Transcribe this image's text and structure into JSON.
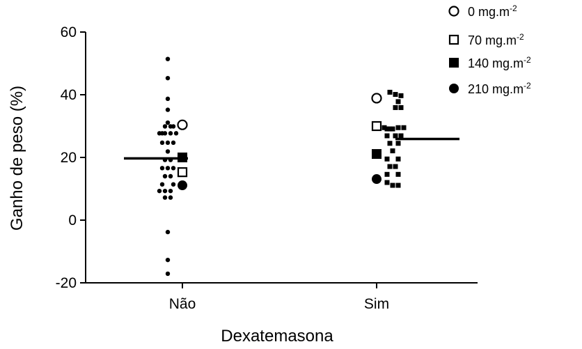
{
  "chart_data": {
    "type": "scatter",
    "title": "",
    "xlabel": "Dexatemasona",
    "ylabel": "Ganho de peso (%)",
    "ylim": [
      -20,
      60
    ],
    "yticks": [
      "-20",
      "0",
      "20",
      "40",
      "60"
    ],
    "categories": [
      "Não",
      "Sim"
    ],
    "grid": false,
    "legend_position": "top-right",
    "legend": [
      {
        "marker": "open-circle",
        "label": "0 mg.m",
        "sup": "-2"
      },
      {
        "marker": "open-square",
        "label": "70 mg.m",
        "sup": "-2"
      },
      {
        "marker": "filled-square",
        "label": "140 mg.m",
        "sup": "-2"
      },
      {
        "marker": "filled-circle",
        "label": "210 mg.m",
        "sup": "-2"
      }
    ],
    "series": [
      {
        "category": "Não",
        "marker": "small-dot",
        "points": [
          {
            "x": -0.105,
            "y": 51.4
          },
          {
            "x": -0.105,
            "y": 45.3
          },
          {
            "x": -0.105,
            "y": 38.7
          },
          {
            "x": -0.105,
            "y": 35.2
          },
          {
            "x": -0.105,
            "y": 31.1
          },
          {
            "x": -0.125,
            "y": 29.9
          },
          {
            "x": -0.085,
            "y": 29.9
          },
          {
            "x": -0.165,
            "y": 27.7
          },
          {
            "x": -0.145,
            "y": 27.7
          },
          {
            "x": -0.125,
            "y": 27.7
          },
          {
            "x": -0.085,
            "y": 27.7
          },
          {
            "x": -0.065,
            "y": 29.9
          },
          {
            "x": -0.045,
            "y": 27.7
          },
          {
            "x": -0.145,
            "y": 24.7
          },
          {
            "x": -0.105,
            "y": 24.7
          },
          {
            "x": -0.065,
            "y": 24.7
          },
          {
            "x": -0.105,
            "y": 21.9
          },
          {
            "x": -0.125,
            "y": 19.2
          },
          {
            "x": -0.085,
            "y": 19.2
          },
          {
            "x": -0.145,
            "y": 16.6
          },
          {
            "x": -0.105,
            "y": 16.6
          },
          {
            "x": -0.065,
            "y": 16.6
          },
          {
            "x": -0.125,
            "y": 14.0
          },
          {
            "x": -0.085,
            "y": 14.0
          },
          {
            "x": -0.145,
            "y": 11.4
          },
          {
            "x": -0.065,
            "y": 11.4
          },
          {
            "x": -0.165,
            "y": 9.3
          },
          {
            "x": -0.125,
            "y": 9.3
          },
          {
            "x": -0.085,
            "y": 9.3
          },
          {
            "x": -0.125,
            "y": 7.2
          },
          {
            "x": -0.085,
            "y": 7.2
          },
          {
            "x": -0.105,
            "y": -3.8
          },
          {
            "x": -0.105,
            "y": -12.7
          },
          {
            "x": -0.105,
            "y": -17.1
          }
        ]
      },
      {
        "category": "Sim",
        "marker": "small-square",
        "points": [
          {
            "x": 0.095,
            "y": 40.8
          },
          {
            "x": 0.135,
            "y": 40.1
          },
          {
            "x": 0.175,
            "y": 39.7
          },
          {
            "x": 0.155,
            "y": 37.8
          },
          {
            "x": 0.135,
            "y": 35.9
          },
          {
            "x": 0.175,
            "y": 35.9
          },
          {
            "x": 0.055,
            "y": 29.5
          },
          {
            "x": 0.075,
            "y": 29.1
          },
          {
            "x": 0.095,
            "y": 29.1
          },
          {
            "x": 0.115,
            "y": 29.1
          },
          {
            "x": 0.155,
            "y": 29.5
          },
          {
            "x": 0.195,
            "y": 29.5
          },
          {
            "x": 0.075,
            "y": 26.9
          },
          {
            "x": 0.135,
            "y": 26.9
          },
          {
            "x": 0.175,
            "y": 26.9
          },
          {
            "x": 0.095,
            "y": 24.5
          },
          {
            "x": 0.155,
            "y": 24.5
          },
          {
            "x": 0.115,
            "y": 22.1
          },
          {
            "x": 0.075,
            "y": 19.5
          },
          {
            "x": 0.155,
            "y": 19.5
          },
          {
            "x": 0.095,
            "y": 17.1
          },
          {
            "x": 0.135,
            "y": 17.1
          },
          {
            "x": 0.075,
            "y": 14.6
          },
          {
            "x": 0.155,
            "y": 14.6
          },
          {
            "x": 0.075,
            "y": 12.0
          },
          {
            "x": 0.115,
            "y": 11.1
          },
          {
            "x": 0.155,
            "y": 11.1
          }
        ]
      }
    ],
    "reference_points": [
      {
        "category": "Não",
        "dose": "0 mg.m-2",
        "marker": "open-circle",
        "y": 30.4
      },
      {
        "category": "Não",
        "dose": "70 mg.m-2",
        "marker": "open-square",
        "y": 15.3
      },
      {
        "category": "Não",
        "dose": "140 mg.m-2",
        "marker": "filled-square",
        "y": 20.0
      },
      {
        "category": "Não",
        "dose": "210 mg.m-2",
        "marker": "filled-circle",
        "y": 11.1
      },
      {
        "category": "Sim",
        "dose": "0 mg.m-2",
        "marker": "open-circle",
        "y": 38.9
      },
      {
        "category": "Sim",
        "dose": "70 mg.m-2",
        "marker": "open-square",
        "y": 30.0
      },
      {
        "category": "Sim",
        "dose": "140 mg.m-2",
        "marker": "filled-square",
        "y": 21.1
      },
      {
        "category": "Sim",
        "dose": "210 mg.m-2",
        "marker": "filled-circle",
        "y": 13.1
      }
    ],
    "means": [
      {
        "category": "Não",
        "y": 19.7
      },
      {
        "category": "Sim",
        "y": 25.9
      }
    ]
  }
}
